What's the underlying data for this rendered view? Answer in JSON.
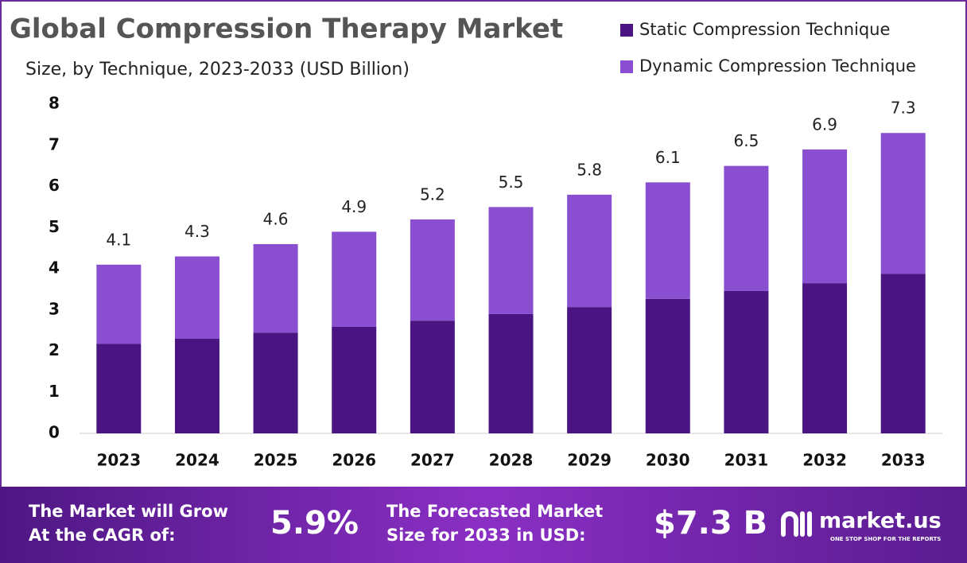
{
  "chart_data": {
    "type": "stacked-bar",
    "title": "Global  Compression Therapy Market",
    "subtitle": "Size, by Technique, 2023-2033 (USD Billion)",
    "categories": [
      "2023",
      "2024",
      "2025",
      "2026",
      "2027",
      "2028",
      "2029",
      "2030",
      "2031",
      "2032",
      "2033"
    ],
    "series": [
      {
        "name": "Static Compression Technique",
        "color": "#4a1582",
        "values": [
          2.18,
          2.3,
          2.45,
          2.59,
          2.74,
          2.9,
          3.07,
          3.27,
          3.46,
          3.65,
          3.88
        ]
      },
      {
        "name": "Dynamic Compression Technique",
        "color": "#8a4fd1",
        "values": [
          1.92,
          2.0,
          2.15,
          2.31,
          2.46,
          2.6,
          2.73,
          2.83,
          3.04,
          3.25,
          3.42
        ]
      }
    ],
    "totals": [
      4.1,
      4.3,
      4.6,
      4.9,
      5.2,
      5.5,
      5.8,
      6.1,
      6.5,
      6.9,
      7.3
    ],
    "ylim": [
      0,
      8
    ],
    "yticks": [
      0,
      1,
      2,
      3,
      4,
      5,
      6,
      7,
      8
    ],
    "grid": false,
    "legend": "top-right"
  },
  "footer": {
    "cagr_text": [
      "The Market will Grow",
      "At the CAGR of:"
    ],
    "cagr_value": "5.9%",
    "forecast_text": [
      "The Forecasted Market",
      "Size for 2033 in USD:"
    ],
    "forecast_value": "$7.3 B",
    "brand": "market.us",
    "tagline": "ONE STOP SHOP FOR THE REPORTS"
  }
}
